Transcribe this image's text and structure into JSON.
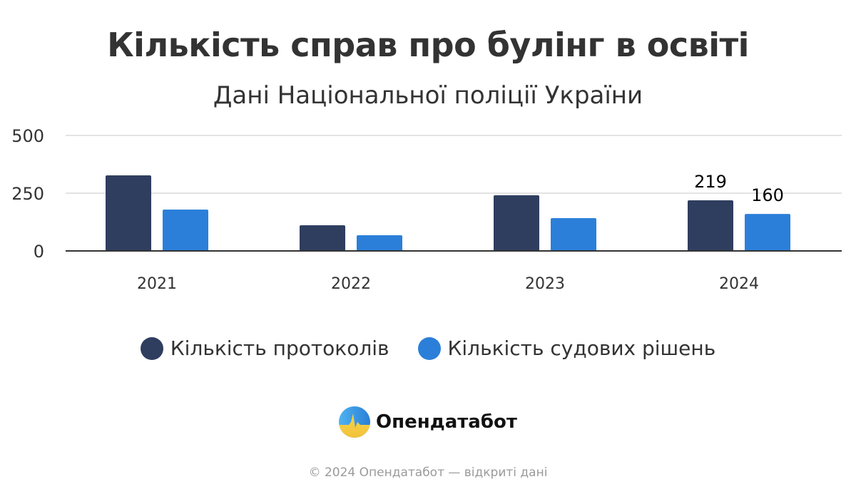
{
  "header": {
    "title": "Кількість справ про булінг в освіті",
    "subtitle": "Дані Національної поліції України"
  },
  "legend": [
    {
      "label": "Кількість протоколів",
      "color": "#2f3e5f"
    },
    {
      "label": "Кількість судових рішень",
      "color": "#2b7fd9"
    }
  ],
  "brand": {
    "name": "Опендатабот",
    "logo_icon": "opendatabot-logo-icon"
  },
  "footer": {
    "text": "© 2024 Опендатабот — відкриті дані"
  },
  "chart_data": {
    "type": "bar",
    "title": "Кількість справ про булінг в освіті",
    "subtitle": "Дані Національної поліції України",
    "xlabel": "",
    "ylabel": "",
    "categories": [
      "2021",
      "2022",
      "2023",
      "2024"
    ],
    "series": [
      {
        "name": "Кількість протоколів",
        "color": "#2f3e5f",
        "values": [
          327,
          111,
          241,
          219
        ]
      },
      {
        "name": "Кількість судових рішень",
        "color": "#2b7fd9",
        "values": [
          179,
          68,
          142,
          160
        ]
      }
    ],
    "data_labels": [
      {
        "category": "2024",
        "series": "Кількість протоколів",
        "text": "219"
      },
      {
        "category": "2024",
        "series": "Кількість судових рішень",
        "text": "160"
      }
    ],
    "yticks": [
      0,
      250,
      500
    ],
    "ylim": [
      0,
      500
    ],
    "grid": true,
    "legend_position": "bottom"
  }
}
